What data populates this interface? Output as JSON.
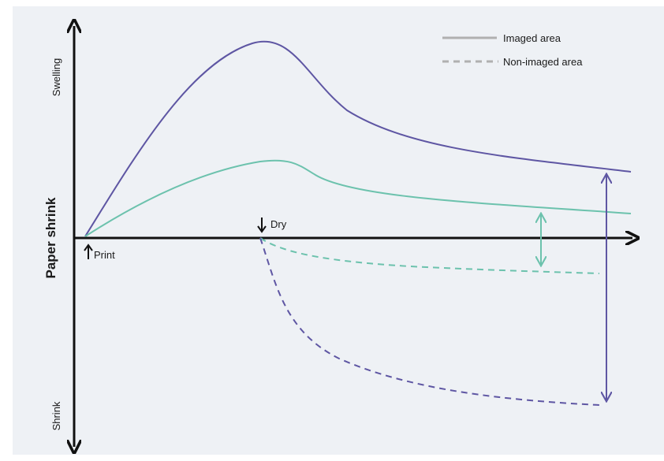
{
  "axis": {
    "y_title": "Paper shrink",
    "y_top_label": "Swelling",
    "y_bottom_label": "Shrink"
  },
  "markers": {
    "print": "Print",
    "dry": "Dry"
  },
  "legend": {
    "solid": "Imaged area",
    "dashed": "Non-imaged area"
  },
  "colors": {
    "purple": "#5e56a3",
    "teal": "#6cc2ad",
    "axis": "#111111",
    "legend_gray": "#b0b0b0",
    "background": "#eef1f5"
  }
}
